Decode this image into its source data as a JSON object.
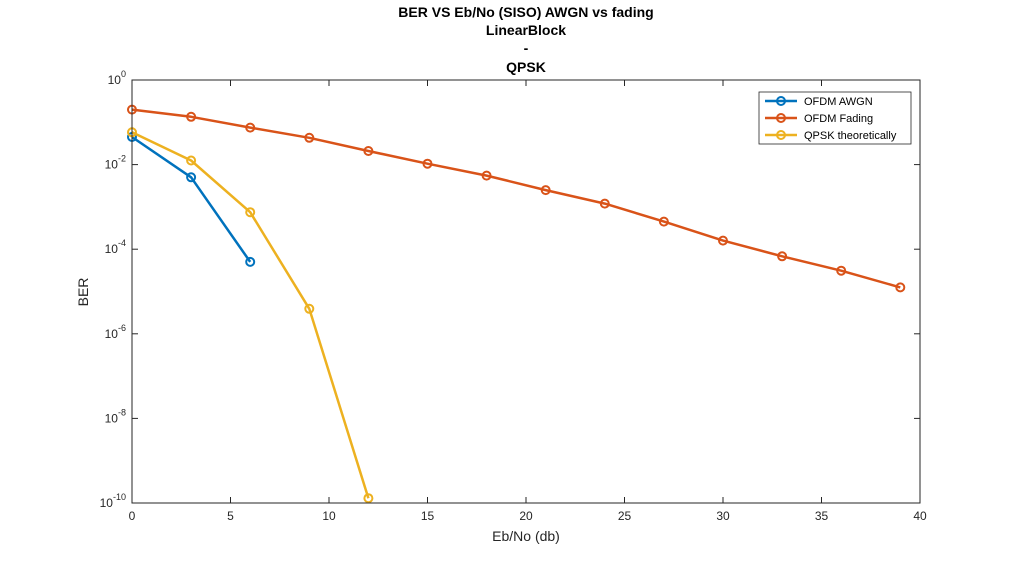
{
  "chart_data": {
    "type": "line",
    "title_lines": [
      "BER VS Eb/No (SISO) AWGN vs fading",
      "LinearBlock",
      "-",
      "QPSK"
    ],
    "xlabel": "Eb/No (db)",
    "ylabel": "BER",
    "xlim": [
      0,
      40
    ],
    "ylim_log10": [
      -10,
      0
    ],
    "y_scale": "log",
    "x_ticks": [
      0,
      5,
      10,
      15,
      20,
      25,
      30,
      35,
      40
    ],
    "y_tick_exponents": [
      0,
      -2,
      -4,
      -6,
      -8,
      -10
    ],
    "y_tick_base": "10",
    "grid": false,
    "legend_position": "top-right",
    "series": [
      {
        "name": "OFDM AWGN",
        "color": "#0072BD",
        "x": [
          0,
          3,
          6
        ],
        "y": [
          0.045,
          0.005,
          5e-05
        ]
      },
      {
        "name": "OFDM Fading",
        "color": "#D95319",
        "x": [
          0,
          3,
          6,
          9,
          12,
          15,
          18,
          21,
          24,
          27,
          30,
          33,
          36,
          39
        ],
        "y": [
          0.2,
          0.135,
          0.075,
          0.043,
          0.021,
          0.0105,
          0.0055,
          0.0025,
          0.0012,
          0.00045,
          0.00016,
          6.8e-05,
          3.1e-05,
          1.25e-05
        ]
      },
      {
        "name": "QPSK theoretically",
        "color": "#EDB120",
        "x": [
          0,
          3,
          6,
          9,
          12
        ],
        "y": [
          0.058,
          0.0125,
          0.00075,
          3.9e-06,
          1.3e-10
        ]
      }
    ]
  }
}
